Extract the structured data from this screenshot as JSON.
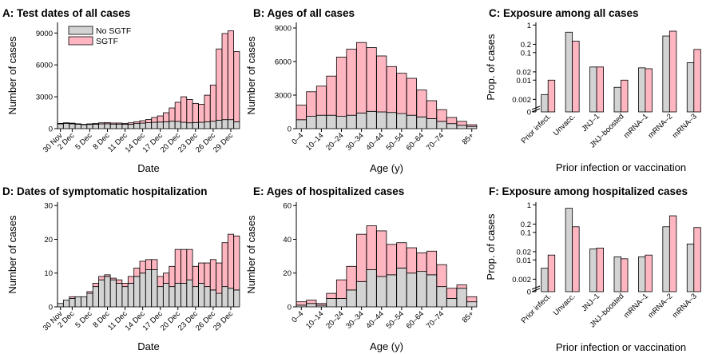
{
  "colors": {
    "sgtf": "#ffb6c1",
    "no_sgtf": "#d3d3d3",
    "edge": "#000000"
  },
  "chart_data": [
    {
      "panel": "A",
      "type": "bar",
      "stacked": true,
      "title": "A: Test dates of all cases",
      "xlabel": "Date",
      "ylabel": "Number of cases",
      "ylim": [
        0,
        10000
      ],
      "yticks": [
        0,
        3000,
        6000,
        9000
      ],
      "categories": [
        "30 Nov",
        "1 Dec",
        "2 Dec",
        "3 Dec",
        "4 Dec",
        "5 Dec",
        "6 Dec",
        "7 Dec",
        "8 Dec",
        "9 Dec",
        "10 Dec",
        "11 Dec",
        "12 Dec",
        "13 Dec",
        "14 Dec",
        "15 Dec",
        "16 Dec",
        "17 Dec",
        "18 Dec",
        "19 Dec",
        "20 Dec",
        "21 Dec",
        "22 Dec",
        "23 Dec",
        "24 Dec",
        "25 Dec",
        "26 Dec",
        "27 Dec",
        "28 Dec",
        "29 Dec",
        "30 Dec"
      ],
      "xtick_labels": [
        "30 Nov",
        "2 Dec",
        "5 Dec",
        "8 Dec",
        "11 Dec",
        "14 Dec",
        "17 Dec",
        "20 Dec",
        "23 Dec",
        "26 Dec",
        "29 Dec"
      ],
      "xtick_index": [
        0,
        2,
        5,
        8,
        11,
        14,
        17,
        20,
        23,
        26,
        29
      ],
      "legend": [
        "No SGTF",
        "SGTF"
      ],
      "legend_position": "top-left",
      "series": [
        {
          "name": "No SGTF",
          "values": [
            450,
            480,
            460,
            420,
            380,
            400,
            420,
            450,
            460,
            430,
            430,
            420,
            420,
            480,
            520,
            560,
            600,
            620,
            650,
            700,
            680,
            600,
            550,
            580,
            600,
            650,
            700,
            800,
            850,
            850,
            650
          ]
        },
        {
          "name": "SGTF",
          "values": [
            50,
            70,
            60,
            40,
            30,
            50,
            80,
            100,
            110,
            100,
            100,
            80,
            130,
            170,
            230,
            300,
            450,
            580,
            850,
            1250,
            1800,
            2400,
            2200,
            1800,
            1700,
            2500,
            3400,
            6700,
            8100,
            8350,
            6600
          ]
        }
      ]
    },
    {
      "panel": "B",
      "type": "bar",
      "stacked": true,
      "title": "B: Ages of all cases",
      "xlabel": "Age (y)",
      "ylabel": "Number of cases",
      "ylim": [
        0,
        9500
      ],
      "yticks": [
        0,
        3000,
        6000,
        9000
      ],
      "categories": [
        "0–4",
        "5–9",
        "10–14",
        "15–19",
        "20–24",
        "25–29",
        "30–34",
        "35–39",
        "40–44",
        "45–49",
        "50–54",
        "55–59",
        "60–64",
        "65–69",
        "70–74",
        "75–79",
        "80–84",
        "85+"
      ],
      "xtick_labels": [
        "0–4",
        "10–14",
        "20–24",
        "30–34",
        "40–44",
        "50–54",
        "60–64",
        "70–74",
        "85+"
      ],
      "xtick_index": [
        0,
        2,
        4,
        6,
        8,
        10,
        12,
        14,
        17
      ],
      "series": [
        {
          "name": "No SGTF",
          "values": [
            800,
            1100,
            1200,
            1200,
            1100,
            1200,
            1400,
            1550,
            1500,
            1450,
            1350,
            1200,
            1050,
            900,
            650,
            450,
            300,
            200
          ]
        },
        {
          "name": "SGTF",
          "values": [
            1300,
            2200,
            2600,
            3500,
            5300,
            5900,
            6300,
            5700,
            5000,
            4100,
            3600,
            3300,
            2400,
            1600,
            1050,
            550,
            350,
            150
          ]
        }
      ]
    },
    {
      "panel": "C",
      "type": "bar",
      "grouped": true,
      "yscale": "log",
      "title": "C: Exposure among all cases",
      "xlabel": "Prior infection or vaccination",
      "ylabel": "Prop. of cases",
      "yticks": [
        0,
        0.002,
        0.01,
        0.02,
        0.1,
        0.2,
        1
      ],
      "ytick_labels": [
        "0",
        "0.002",
        "0.01",
        "0.02",
        "0.1",
        "0.2",
        "1"
      ],
      "categories": [
        "Prior infect.",
        "Unvacc.",
        "JNJ–1",
        "JNJ–boosted",
        "mRNA–1",
        "mRNA–2",
        "mRNA–3"
      ],
      "series": [
        {
          "name": "No SGTF",
          "values": [
            0.003,
            0.55,
            0.03,
            0.0055,
            0.028,
            0.4,
            0.043
          ]
        },
        {
          "name": "SGTF",
          "values": [
            0.01,
            0.26,
            0.03,
            0.01,
            0.026,
            0.6,
            0.13
          ]
        }
      ]
    },
    {
      "panel": "D",
      "type": "bar",
      "stacked": true,
      "title": "D: Dates of symptomatic hospitalization",
      "xlabel": "Date",
      "ylabel": "Number of cases",
      "ylim": [
        0,
        31
      ],
      "yticks": [
        0,
        10,
        20,
        30
      ],
      "categories": [
        "30 Nov",
        "1 Dec",
        "2 Dec",
        "3 Dec",
        "4 Dec",
        "5 Dec",
        "6 Dec",
        "7 Dec",
        "8 Dec",
        "9 Dec",
        "10 Dec",
        "11 Dec",
        "12 Dec",
        "13 Dec",
        "14 Dec",
        "15 Dec",
        "16 Dec",
        "17 Dec",
        "18 Dec",
        "19 Dec",
        "20 Dec",
        "21 Dec",
        "22 Dec",
        "23 Dec",
        "24 Dec",
        "25 Dec",
        "26 Dec",
        "27 Dec",
        "28 Dec",
        "29 Dec",
        "30 Dec"
      ],
      "xtick_labels": [
        "30 Nov",
        "2 Dec",
        "5 Dec",
        "8 Dec",
        "11 Dec",
        "14 Dec",
        "17 Dec",
        "20 Dec",
        "23 Dec",
        "26 Dec",
        "29 Dec"
      ],
      "xtick_index": [
        0,
        2,
        5,
        8,
        11,
        14,
        17,
        20,
        23,
        26,
        29
      ],
      "series": [
        {
          "name": "No SGTF",
          "values": [
            1,
            2,
            2.5,
            3,
            3,
            4,
            6,
            8,
            9,
            8,
            7,
            6,
            7,
            9,
            10,
            11,
            11,
            6,
            7,
            6,
            7,
            7,
            8,
            6,
            7,
            6,
            5,
            4,
            6,
            5.5,
            5
          ]
        },
        {
          "name": "SGTF",
          "values": [
            0,
            0,
            0.5,
            0,
            0,
            0.5,
            1,
            1,
            0.5,
            0.5,
            1,
            1,
            2,
            2.5,
            3.5,
            3,
            3,
            3,
            3,
            6,
            10,
            10,
            9,
            6,
            6,
            7,
            9,
            9,
            13,
            16,
            16
          ]
        }
      ]
    },
    {
      "panel": "E",
      "type": "bar",
      "stacked": true,
      "title": "E: Ages of hospitalized cases",
      "xlabel": "Age (y)",
      "ylabel": "Number of cases",
      "ylim": [
        0,
        62
      ],
      "yticks": [
        0,
        20,
        40,
        60
      ],
      "categories": [
        "0–4",
        "5–9",
        "10–14",
        "15–19",
        "20–24",
        "25–29",
        "30–34",
        "35–39",
        "40–44",
        "45–49",
        "50–54",
        "55–59",
        "60–64",
        "65–69",
        "70–74",
        "75–79",
        "80–84",
        "85+"
      ],
      "xtick_labels": [
        "0–4",
        "10–14",
        "20–24",
        "30–34",
        "40–44",
        "50–54",
        "60–64",
        "70–74",
        "85+"
      ],
      "xtick_index": [
        0,
        2,
        4,
        6,
        8,
        10,
        12,
        14,
        17
      ],
      "series": [
        {
          "name": "No SGTF",
          "values": [
            1,
            2,
            1,
            5,
            5,
            10,
            15,
            22,
            18,
            19,
            23,
            20,
            21,
            19,
            12,
            5,
            11,
            3
          ]
        },
        {
          "name": "SGTF",
          "values": [
            2,
            2,
            1,
            3,
            11,
            14,
            28,
            26,
            27,
            18,
            15,
            15,
            11,
            14,
            13,
            6,
            2,
            3
          ]
        }
      ]
    },
    {
      "panel": "F",
      "type": "bar",
      "grouped": true,
      "yscale": "log",
      "title": "F: Exposure among hospitalized cases",
      "xlabel": "Prior infection or vaccination",
      "ylabel": "Prop. of cases",
      "yticks": [
        0,
        0.002,
        0.01,
        0.02,
        0.1,
        0.2,
        1
      ],
      "ytick_labels": [
        "0",
        "0.002",
        "0.01",
        "0.02",
        "0.1",
        "0.2",
        "1"
      ],
      "categories": [
        "Prior infect.",
        "Unvacc.",
        "JNJ–1",
        "JNJ–boosted",
        "mRNA–1",
        "mRNA–2",
        "mRNA–3"
      ],
      "series": [
        {
          "name": "No SGTF",
          "values": [
            0.005,
            0.75,
            0.025,
            0.013,
            0.013,
            0.16,
            0.038
          ]
        },
        {
          "name": "SGTF",
          "values": [
            0.015,
            0.16,
            0.027,
            0.011,
            0.015,
            0.4,
            0.15
          ]
        }
      ]
    }
  ]
}
